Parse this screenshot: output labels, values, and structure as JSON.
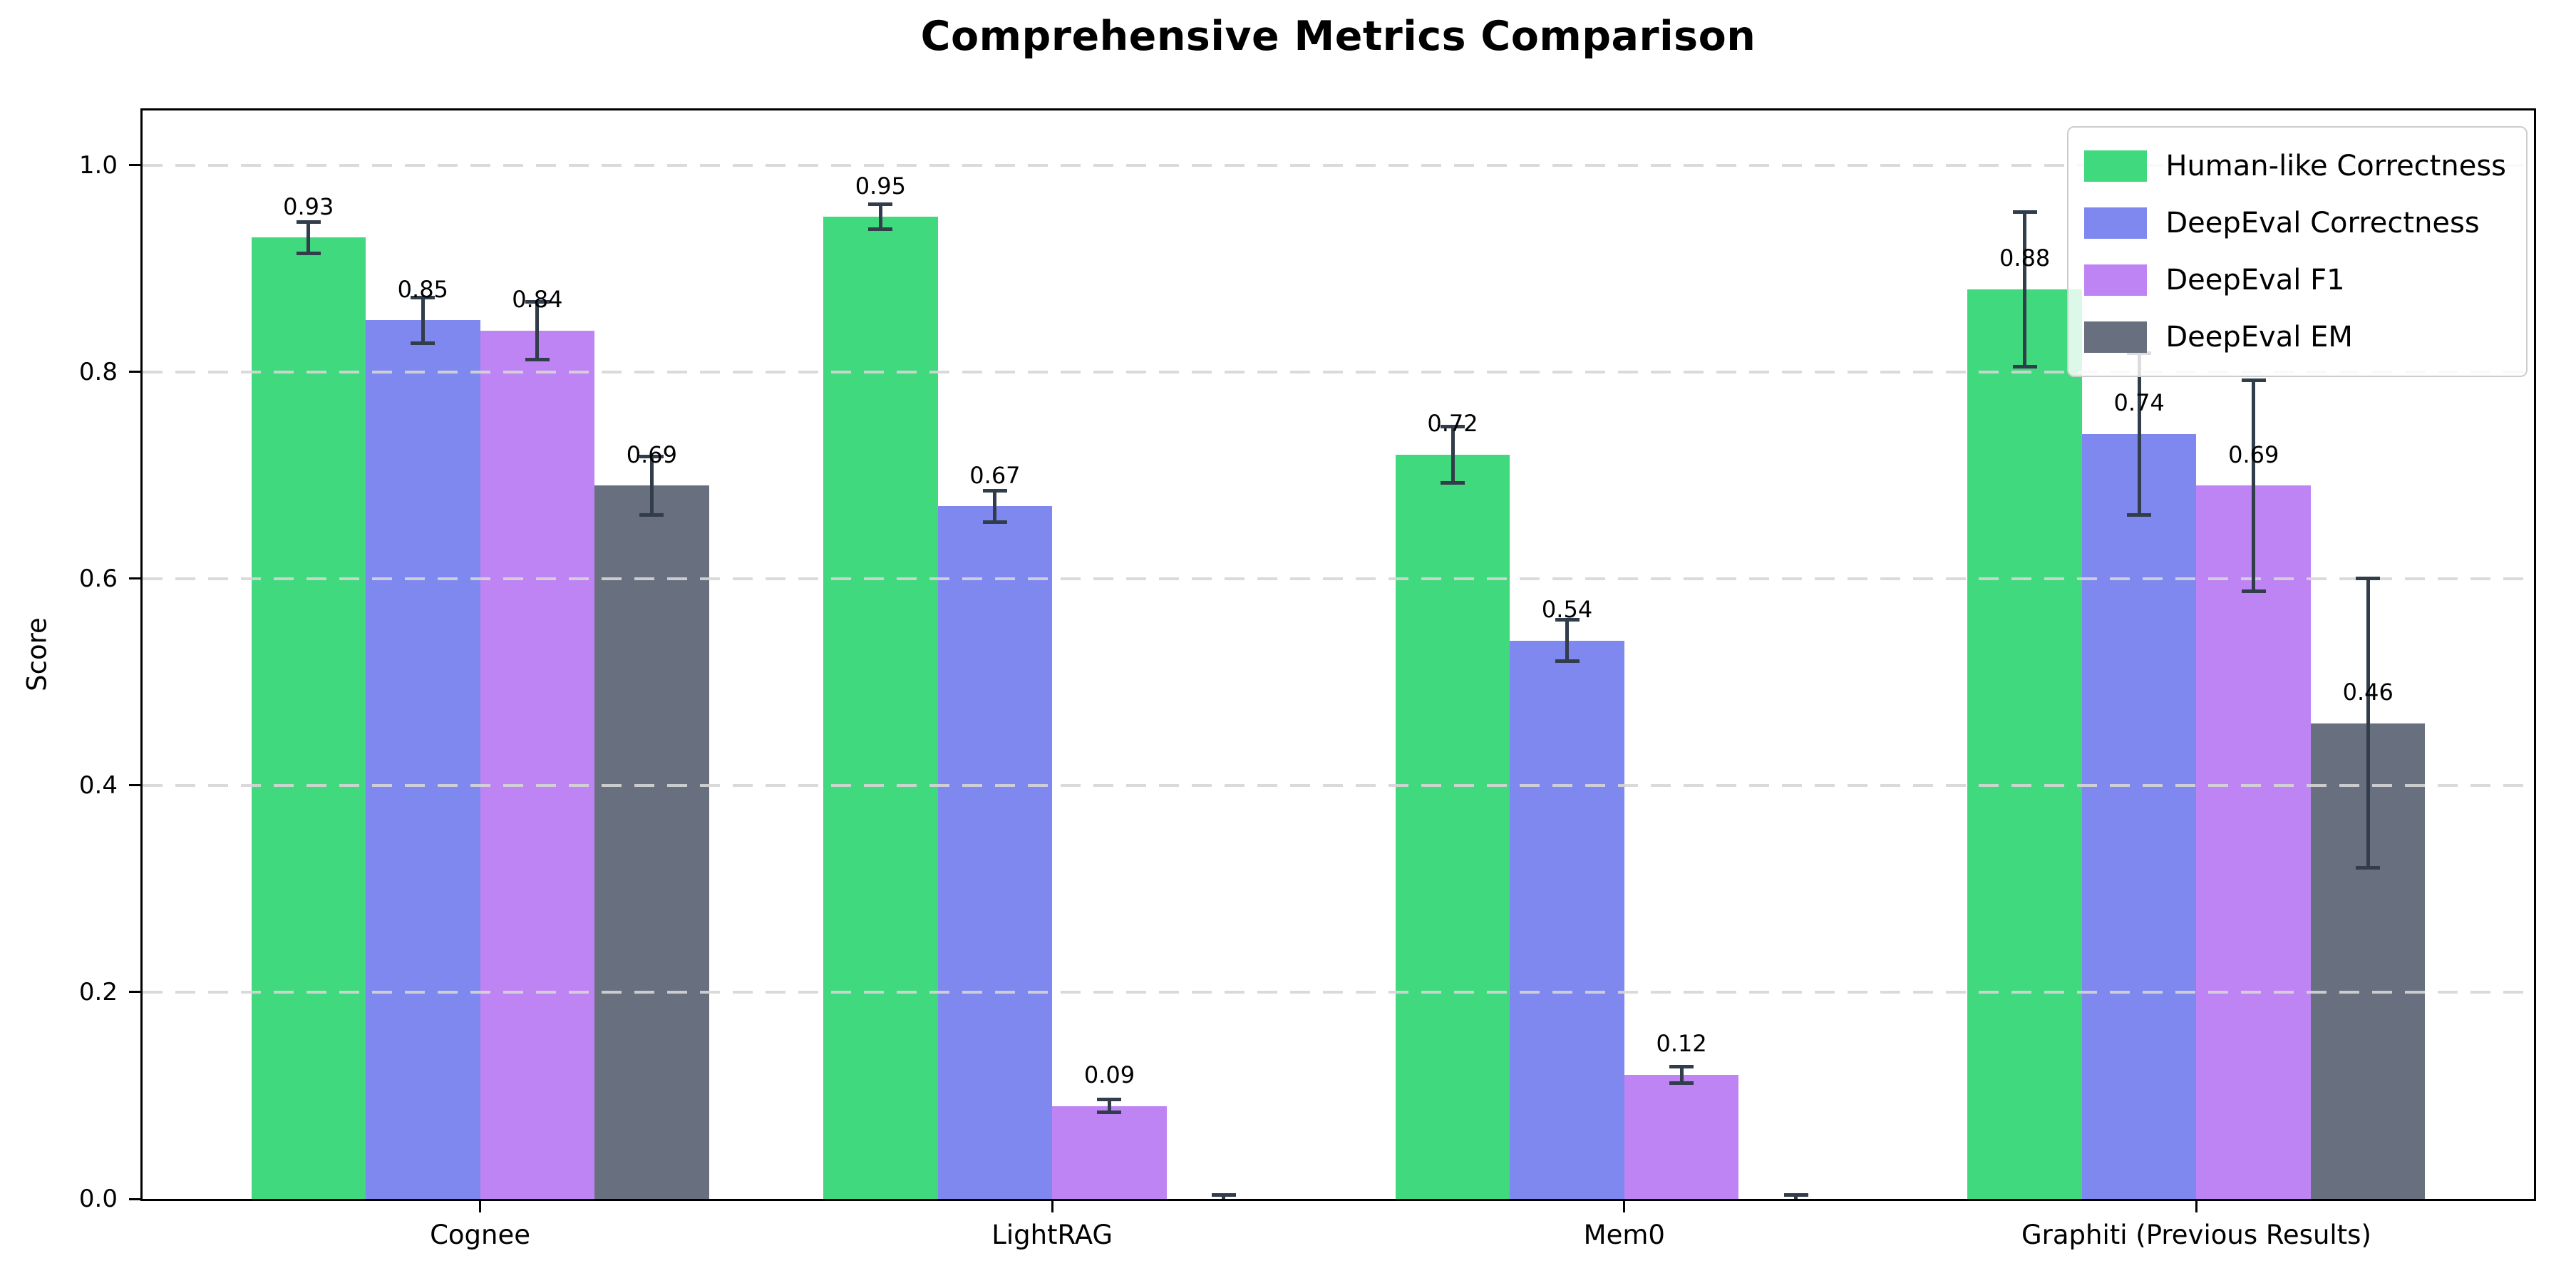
{
  "figure_title": "Comprehensive Metrics Comparison",
  "chart_data": {
    "type": "bar",
    "title": "Comprehensive Metrics Comparison",
    "xlabel": "",
    "ylabel": "Score",
    "categories": [
      "Cognee",
      "LightRAG",
      "Mem0",
      "Graphiti (Previous Results)"
    ],
    "series": [
      {
        "name": "Human-like Correctness",
        "color": "#41d97e",
        "values": [
          0.93,
          0.95,
          0.72,
          0.88
        ],
        "errors": [
          0.015,
          0.012,
          0.027,
          0.075
        ],
        "labels": [
          "0.93",
          "0.95",
          "0.72",
          "0.88"
        ]
      },
      {
        "name": "DeepEval Correctness",
        "color": "#7e88ee",
        "values": [
          0.85,
          0.67,
          0.54,
          0.74
        ],
        "errors": [
          0.022,
          0.015,
          0.02,
          0.078
        ],
        "labels": [
          "0.85",
          "0.67",
          "0.54",
          "0.74"
        ]
      },
      {
        "name": "DeepEval F1",
        "color": "#bf84f3",
        "values": [
          0.84,
          0.09,
          0.12,
          0.69
        ],
        "errors": [
          0.028,
          0.006,
          0.008,
          0.102
        ],
        "labels": [
          "0.84",
          "0.09",
          "0.12",
          "0.69"
        ]
      },
      {
        "name": "DeepEval EM",
        "color": "#68707f",
        "values": [
          0.69,
          0.0,
          0.0,
          0.46
        ],
        "errors": [
          0.028,
          0.004,
          0.004,
          0.14
        ],
        "labels": [
          "0.69",
          "",
          "",
          "0.46"
        ]
      }
    ],
    "y_ticks": [
      0.0,
      0.2,
      0.4,
      0.6,
      0.8,
      1.0
    ],
    "y_tick_labels": [
      "0.0",
      "0.2",
      "0.4",
      "0.6",
      "0.8",
      "1.0"
    ],
    "ylim": [
      0,
      1.053
    ],
    "xlim": [
      -0.59,
      3.59
    ],
    "bar_width": 0.2,
    "value_label_offset": 0.03,
    "grid": {
      "axis": "y",
      "style": "dashed",
      "color": "#d6d6d6"
    },
    "legend_position": "upper right",
    "error_bar_color": "#323d4c",
    "axis_color": "#000000"
  }
}
